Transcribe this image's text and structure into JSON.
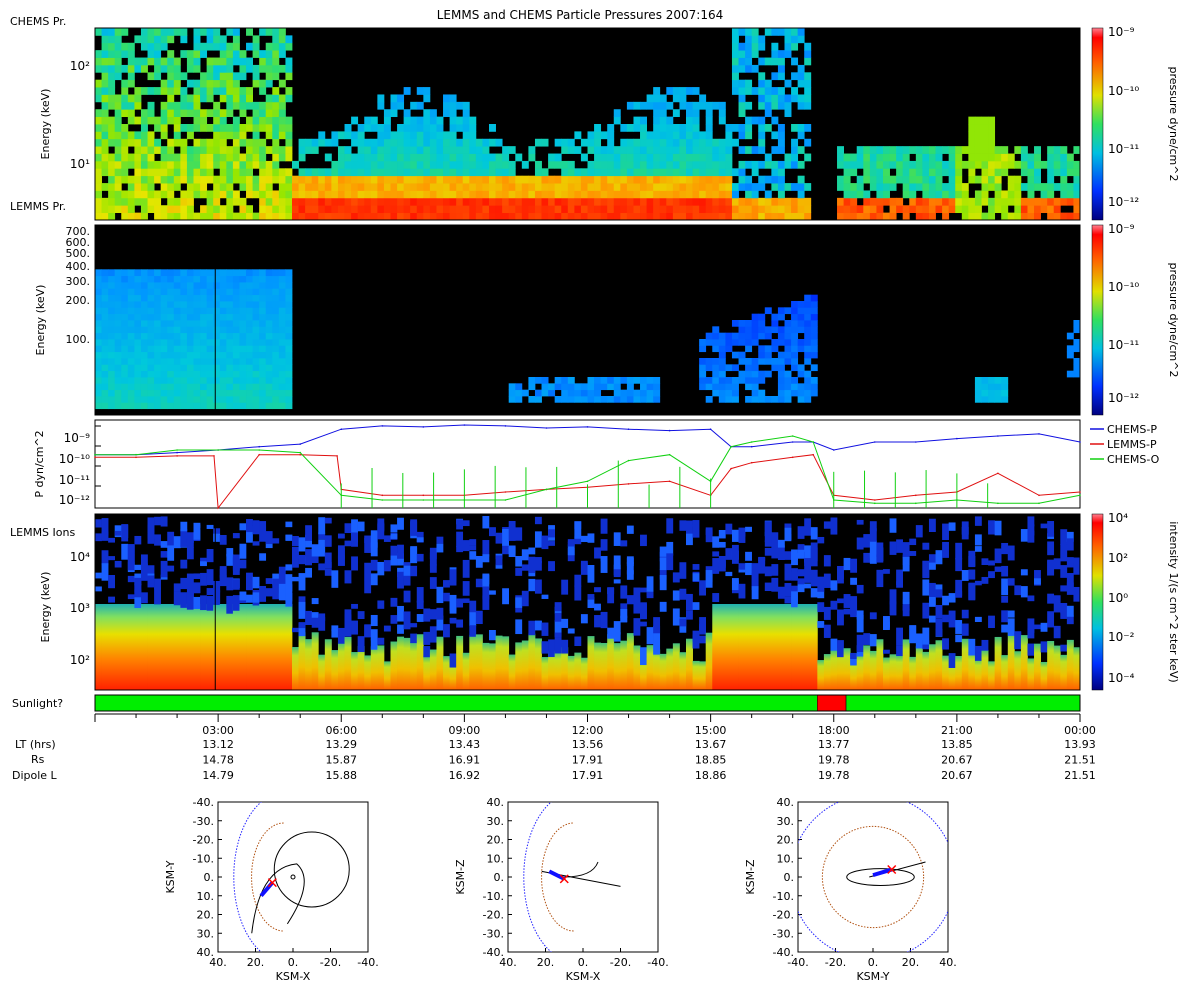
{
  "title": "LEMMS and CHEMS Particle Pressures  2007:164",
  "colors": {
    "background": "#ffffff",
    "plot_bg": "#000000",
    "sunlight_on": "#00ee00",
    "sunlight_off": "#ff0000",
    "chems_p": "#1010e0",
    "lemms_p": "#e01010",
    "chems_o": "#10d010",
    "orbit": "#000000",
    "boundary_outer": "#2020ff",
    "boundary_inner": "#b05010"
  },
  "panels": {
    "chems": {
      "label": "CHEMS Pr.",
      "ylabel": "Energy (keV)",
      "yticks": [
        "10²",
        "10¹"
      ],
      "colorbar_label": "pressure dyne/cm^2",
      "colorbar_ticks": [
        "10⁻⁹",
        "10⁻¹⁰",
        "10⁻¹¹",
        "10⁻¹²"
      ]
    },
    "lemms_pr": {
      "label": "LEMMS Pr.",
      "ylabel": "Energy (keV)",
      "yticks": [
        "700.",
        "600.",
        "500.",
        "400.",
        "300.",
        "200.",
        "100."
      ],
      "colorbar_label": "pressure dyne/cm^2",
      "colorbar_ticks": [
        "10⁻⁹",
        "10⁻¹⁰",
        "10⁻¹¹",
        "10⁻¹²"
      ]
    },
    "pressure_lines": {
      "ylabel": "P dyn/cm^2",
      "yticks": [
        "10⁻⁹",
        "10⁻¹⁰",
        "10⁻¹¹",
        "10⁻¹²"
      ]
    },
    "lemms_ions": {
      "label": "LEMMS Ions",
      "ylabel": "Energy (keV)",
      "yticks": [
        "10⁴",
        "10³",
        "10²"
      ],
      "colorbar_label": "intensity 1/(s cm^2 ster keV)",
      "colorbar_ticks": [
        "10⁴",
        "10²",
        "10⁰",
        "10⁻²",
        "10⁻⁴"
      ]
    },
    "sunlight": {
      "label": "Sunlight?"
    }
  },
  "chart_data": [
    {
      "type": "line",
      "title": "Particle pressures",
      "ylabel": "P dyn/cm^2",
      "yscale": "log",
      "ylim": [
        1e-12,
        2e-09
      ],
      "x_unit": "hours",
      "series": [
        {
          "name": "CHEMS-P",
          "x": [
            0,
            1,
            2,
            3,
            4,
            5,
            6,
            7,
            8,
            9,
            10,
            11,
            12,
            13,
            14,
            15,
            15.5,
            16,
            17,
            17.5,
            18,
            19,
            20,
            21,
            22,
            23,
            24
          ],
          "values": [
            1e-10,
            1e-10,
            1.2e-10,
            1.5e-10,
            2e-10,
            2.5e-10,
            9e-10,
            1.2e-09,
            1.1e-09,
            1.3e-09,
            1.2e-09,
            1e-09,
            1.1e-09,
            9e-10,
            8e-10,
            9e-10,
            2e-10,
            2e-10,
            3e-10,
            3e-10,
            1.5e-10,
            3e-10,
            3e-10,
            4e-10,
            5e-10,
            6e-10,
            3e-10
          ]
        },
        {
          "name": "LEMMS-P",
          "x": [
            0,
            1,
            2,
            2.9,
            3,
            4,
            5,
            5.9,
            6,
            7,
            8,
            9,
            10,
            11,
            12,
            13,
            14,
            15,
            15.5,
            16,
            17,
            17.5,
            18,
            19,
            20,
            21,
            22,
            23,
            24
          ],
          "values": [
            8e-11,
            8e-11,
            9e-11,
            9e-11,
            1e-12,
            1e-10,
            1e-10,
            9e-11,
            5e-12,
            3e-12,
            3e-12,
            3e-12,
            4e-12,
            5e-12,
            6e-12,
            8e-12,
            1e-11,
            3e-12,
            3e-11,
            5e-11,
            8e-11,
            1e-10,
            3e-12,
            2e-12,
            3e-12,
            4e-12,
            2e-11,
            3e-12,
            4e-12
          ]
        },
        {
          "name": "CHEMS-O",
          "x": [
            0,
            1,
            2,
            3,
            4,
            5,
            6,
            7,
            8,
            9,
            10,
            11,
            12,
            13,
            14,
            15,
            15.5,
            16,
            17,
            17.5,
            18,
            19,
            20,
            21,
            22,
            23,
            24
          ],
          "values": [
            1e-10,
            1e-10,
            1.5e-10,
            1.5e-10,
            1.5e-10,
            1.2e-10,
            3e-12,
            2e-12,
            2e-12,
            2e-12,
            2e-12,
            5e-12,
            1e-11,
            6e-11,
            1e-10,
            1e-11,
            2e-10,
            3e-10,
            5e-10,
            3e-10,
            2e-12,
            1.5e-12,
            1.5e-12,
            2e-12,
            1.5e-12,
            1.5e-12,
            3e-12
          ]
        }
      ],
      "legend": "right"
    },
    {
      "type": "heatmap",
      "title": "CHEMS Pr.",
      "ylabel": "Energy (keV)",
      "zlabel": "pressure dyne/cm^2",
      "zrange": [
        1e-12,
        1e-09
      ]
    },
    {
      "type": "heatmap",
      "title": "LEMMS Pr.",
      "ylabel": "Energy (keV)",
      "zlabel": "pressure dyne/cm^2",
      "zrange": [
        1e-12,
        1e-09
      ]
    },
    {
      "type": "heatmap",
      "title": "LEMMS Ions",
      "ylabel": "Energy (keV)",
      "zlabel": "intensity 1/(s cm^2 ster keV)",
      "zrange": [
        0.0001,
        10000.0
      ]
    },
    {
      "type": "bar",
      "title": "Sunlight?",
      "segments": [
        {
          "start_hour": 0,
          "end_hour": 17.6,
          "state": "sunlight"
        },
        {
          "start_hour": 17.6,
          "end_hour": 18.3,
          "state": "eclipse"
        },
        {
          "start_hour": 18.3,
          "end_hour": 24,
          "state": "sunlight"
        }
      ]
    }
  ],
  "time_axis": {
    "rows": [
      {
        "label": "LT (hrs)",
        "values": [
          "13.12",
          "13.29",
          "13.43",
          "13.56",
          "13.67",
          "13.77",
          "13.85",
          "13.93"
        ]
      },
      {
        "label": "Rs",
        "values": [
          "14.78",
          "15.87",
          "16.91",
          "17.91",
          "18.85",
          "19.78",
          "20.67",
          "21.51"
        ]
      },
      {
        "label": "Dipole L",
        "values": [
          "14.79",
          "15.88",
          "16.92",
          "17.91",
          "18.86",
          "19.78",
          "20.67",
          "21.51"
        ]
      }
    ],
    "ticks": [
      "03:00",
      "06:00",
      "09:00",
      "12:00",
      "15:00",
      "18:00",
      "21:00",
      "00:00"
    ],
    "tick_hours": [
      3,
      6,
      9,
      12,
      15,
      18,
      21,
      24
    ]
  },
  "orbit_plots": [
    {
      "name": "orbit-xy",
      "xlabel": "KSM-X",
      "ylabel": "KSM-Y",
      "xticks": [
        "40.",
        "20.",
        "0.",
        "-20.",
        "-40."
      ],
      "yticks": [
        "-40.",
        "-30.",
        "-20.",
        "-10.",
        "0.",
        "10.",
        "20.",
        "30.",
        "40."
      ],
      "x_range": [
        40,
        -40
      ],
      "y_range": [
        -40,
        40
      ]
    },
    {
      "name": "orbit-xz",
      "xlabel": "KSM-X",
      "ylabel": "KSM-Z",
      "xticks": [
        "40.",
        "20.",
        "0.",
        "-20.",
        "-40."
      ],
      "yticks": [
        "40.",
        "30.",
        "20.",
        "10.",
        "0.",
        "-10.",
        "-20.",
        "-30.",
        "-40."
      ],
      "x_range": [
        40,
        -40
      ],
      "y_range": [
        40,
        -40
      ]
    },
    {
      "name": "orbit-yz",
      "xlabel": "KSM-Y",
      "ylabel": "KSM-Z",
      "xticks": [
        "-40.",
        "-20.",
        "0.",
        "20.",
        "40."
      ],
      "yticks": [
        "40.",
        "30.",
        "20.",
        "10.",
        "0.",
        "-10.",
        "-20.",
        "-30.",
        "-40."
      ],
      "x_range": [
        -40,
        40
      ],
      "y_range": [
        40,
        -40
      ]
    }
  ]
}
